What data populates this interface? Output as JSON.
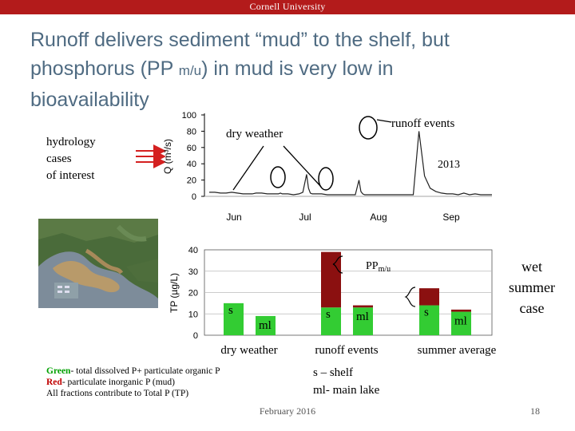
{
  "header": {
    "university": "Cornell University"
  },
  "title": {
    "line1": "Runoff delivers sediment “mud” to the shelf, but",
    "line2a": "phosphorus (PP ",
    "line2b": "m/u",
    "line2c": ") in mud is very low in",
    "line3": "bioavailability"
  },
  "hydrology": {
    "line1": "hydrology",
    "line2": "cases",
    "line3": "of interest"
  },
  "annotations": {
    "dry_weather": "dry weather",
    "runoff_events": "runoff events",
    "year": "2013",
    "ppmu_main": "PP",
    "ppmu_sub": "m/u",
    "wet": [
      "wet",
      "summer",
      "case"
    ]
  },
  "colors": {
    "green": "#33cc33",
    "red": "#8b1010",
    "arrow": "#d42020",
    "header": "#b31b1b",
    "title": "#4f6b82"
  },
  "chart_data": [
    {
      "type": "line",
      "xlabel": "",
      "ylabel": "Q (m³/s)",
      "ylim": [
        0,
        100
      ],
      "yticks": [
        0,
        20,
        40,
        60,
        80,
        100
      ],
      "xticks": [
        "Jun",
        "Jul",
        "Aug",
        "Sep"
      ],
      "x": [
        0,
        6,
        12,
        18,
        24,
        30,
        36,
        40,
        42,
        44,
        46,
        50,
        56,
        62,
        68,
        72,
        74,
        76,
        78,
        84,
        90,
        96,
        100,
        104,
        106,
        108,
        110,
        114,
        120,
        126,
        132,
        138,
        144,
        150,
        156,
        160,
        162,
        164,
        166,
        170,
        176,
        182,
        188,
        194,
        200,
        206,
        212,
        218,
        224,
        230,
        236,
        242,
        248,
        254,
        260,
        266,
        272,
        278,
        284,
        290,
        296,
        302
      ],
      "y": [
        5,
        5,
        4,
        4,
        5,
        4,
        3,
        3,
        3,
        3,
        3,
        4,
        4,
        3,
        3,
        3,
        3,
        4,
        3,
        3,
        2,
        3,
        5,
        27,
        10,
        4,
        3,
        3,
        3,
        2,
        2,
        2,
        2,
        2,
        2,
        20,
        6,
        3,
        2,
        2,
        2,
        2,
        2,
        2,
        2,
        2,
        2,
        2,
        80,
        25,
        10,
        6,
        4,
        3,
        3,
        2,
        4,
        2,
        3,
        2,
        2,
        2
      ]
    },
    {
      "type": "bar",
      "stacked": true,
      "ylabel": "TP (µg/L)",
      "ylim": [
        0,
        40
      ],
      "yticks": [
        0,
        10,
        20,
        30,
        40
      ],
      "groups": [
        "dry weather",
        "runoff events",
        "summer average"
      ],
      "categories": [
        "s",
        "ml",
        "s",
        "ml",
        "s",
        "ml"
      ],
      "series": [
        {
          "values": [
            15,
            9,
            13,
            13,
            14,
            11
          ]
        },
        {
          "values": [
            0,
            0,
            26,
            1,
            8,
            1
          ]
        }
      ]
    }
  ],
  "legend": {
    "green_label": "Green",
    "green_text": "- total dissolved P+ particulate organic P",
    "red_label": "Red",
    "red_text": "-  particulate inorganic P (mud)",
    "all_text": "All fractions contribute to Total P (TP)"
  },
  "notes": {
    "shelf": "s – shelf",
    "lake": "ml- main lake"
  },
  "footer": {
    "date": "February 2016",
    "page": "18"
  }
}
